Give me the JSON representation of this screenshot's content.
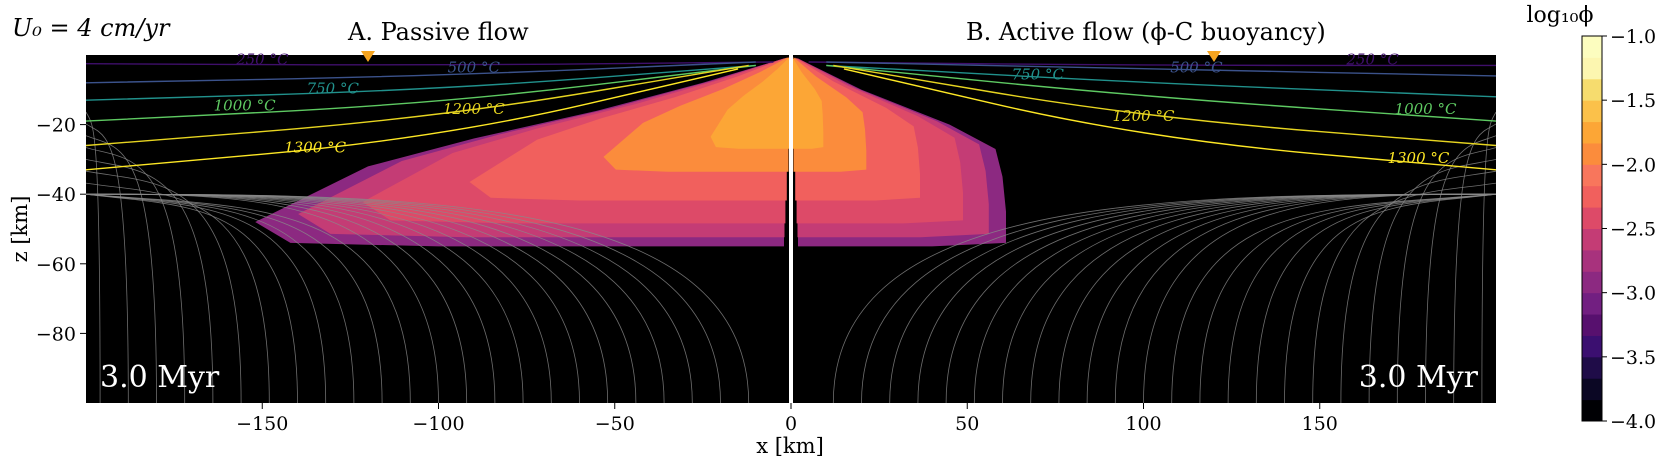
{
  "header": {
    "velocity_label": "U₀ = 4 cm/yr",
    "panel_a_title": "A. Passive flow",
    "panel_b_title": "B. Active flow (ϕ-C buoyancy)"
  },
  "chart_data": {
    "type": "heatmap",
    "xlabel": "x [km]",
    "ylabel": "z [km]",
    "xlim": [
      -200,
      200
    ],
    "ylim": [
      -100,
      0
    ],
    "xticks": [
      -150,
      -100,
      -50,
      0,
      50,
      100,
      150
    ],
    "xtick_labels": [
      "−150",
      "−100",
      "−50",
      "0",
      "50",
      "100",
      "150"
    ],
    "yticks": [
      -20,
      -40,
      -60,
      -80
    ],
    "ytick_labels": [
      "−20",
      "−40",
      "−60",
      "−80"
    ],
    "time_label_left": "3.0 Myr",
    "time_label_right": "3.0 Myr",
    "background_color": "#000000",
    "ridge_axis_color": "#ffffff",
    "marker_color": "#f7a520",
    "markers_x": [
      -120,
      120
    ],
    "melt_region": {
      "left": [
        [
          -2,
          -1
        ],
        [
          -25,
          -8
        ],
        [
          -55,
          -16
        ],
        [
          -90,
          -24
        ],
        [
          -120,
          -32
        ],
        [
          -152,
          -48
        ],
        [
          -142,
          -54
        ],
        [
          -100,
          -55
        ],
        [
          -50,
          -55
        ],
        [
          -2,
          -55
        ]
      ],
      "right": [
        [
          2,
          -1
        ],
        [
          20,
          -10
        ],
        [
          45,
          -20
        ],
        [
          58,
          -27
        ],
        [
          60,
          -35
        ],
        [
          61,
          -45
        ],
        [
          61,
          -54
        ],
        [
          40,
          -55
        ],
        [
          10,
          -55
        ],
        [
          2,
          -55
        ]
      ]
    },
    "isotherms": [
      {
        "label": "250 °C",
        "color": "#3f0f6b",
        "left": [
          [
            -200,
            -2.5
          ],
          [
            -100,
            -3
          ],
          [
            -5,
            -2
          ]
        ],
        "right": [
          [
            5,
            -2
          ],
          [
            100,
            -3
          ],
          [
            200,
            -3
          ]
        ]
      },
      {
        "label": "500 °C",
        "color": "#3b528b",
        "left": [
          [
            -200,
            -8
          ],
          [
            -100,
            -6
          ],
          [
            -10,
            -2
          ]
        ],
        "right": [
          [
            10,
            -2
          ],
          [
            100,
            -4
          ],
          [
            200,
            -6
          ]
        ]
      },
      {
        "label": "750 °C",
        "color": "#21918c",
        "left": [
          [
            -200,
            -13
          ],
          [
            -100,
            -10
          ],
          [
            -10,
            -3
          ]
        ],
        "right": [
          [
            10,
            -3
          ],
          [
            100,
            -8
          ],
          [
            200,
            -12
          ]
        ]
      },
      {
        "label": "1000 °C",
        "color": "#5ec962",
        "left": [
          [
            -200,
            -19
          ],
          [
            -100,
            -14
          ],
          [
            -10,
            -3
          ]
        ],
        "right": [
          [
            10,
            -3
          ],
          [
            100,
            -12
          ],
          [
            200,
            -19
          ]
        ]
      },
      {
        "label": "1200 °C",
        "color": "#e6d420",
        "left": [
          [
            -200,
            -26
          ],
          [
            -100,
            -18
          ],
          [
            -12,
            -3
          ]
        ],
        "right": [
          [
            12,
            -3
          ],
          [
            100,
            -18
          ],
          [
            200,
            -26
          ]
        ]
      },
      {
        "label": "1300 °C",
        "color": "#fde725",
        "left": [
          [
            -200,
            -33
          ],
          [
            -100,
            -24
          ],
          [
            -15,
            -4
          ]
        ],
        "right": [
          [
            15,
            -4
          ],
          [
            100,
            -24
          ],
          [
            200,
            -33
          ]
        ]
      }
    ],
    "isotherm_label_positions": {
      "left": [
        [
          -150,
          -2.7
        ],
        [
          -90,
          -5
        ],
        [
          -130,
          -11
        ],
        [
          -155,
          -16
        ],
        [
          -90,
          -17
        ],
        [
          -135,
          -28
        ]
      ],
      "right": [
        [
          165,
          -2.8
        ],
        [
          115,
          -5
        ],
        [
          70,
          -7
        ],
        [
          180,
          -17
        ],
        [
          100,
          -19
        ],
        [
          178,
          -31
        ]
      ]
    },
    "colorbar": {
      "label": "log₁₀ϕ",
      "min": -4.0,
      "max": -1.0,
      "ticks": [
        -1.0,
        -1.5,
        -2.0,
        -2.5,
        -3.0,
        -3.5,
        -4.0
      ],
      "tick_labels": [
        "−1.0",
        "−1.5",
        "−2.0",
        "−2.5",
        "−3.0",
        "−3.5",
        "−4.0"
      ],
      "colors": [
        "#000004",
        "#0b0724",
        "#1f0c48",
        "#3b0f70",
        "#57106e",
        "#721f81",
        "#8c2981",
        "#a8327d",
        "#c43c75",
        "#dd4a68",
        "#f1605d",
        "#f8765c",
        "#fb8c3c",
        "#fca636",
        "#fbc14a",
        "#f6dc6e",
        "#fcf6b0",
        "#fcfdbf"
      ]
    }
  }
}
